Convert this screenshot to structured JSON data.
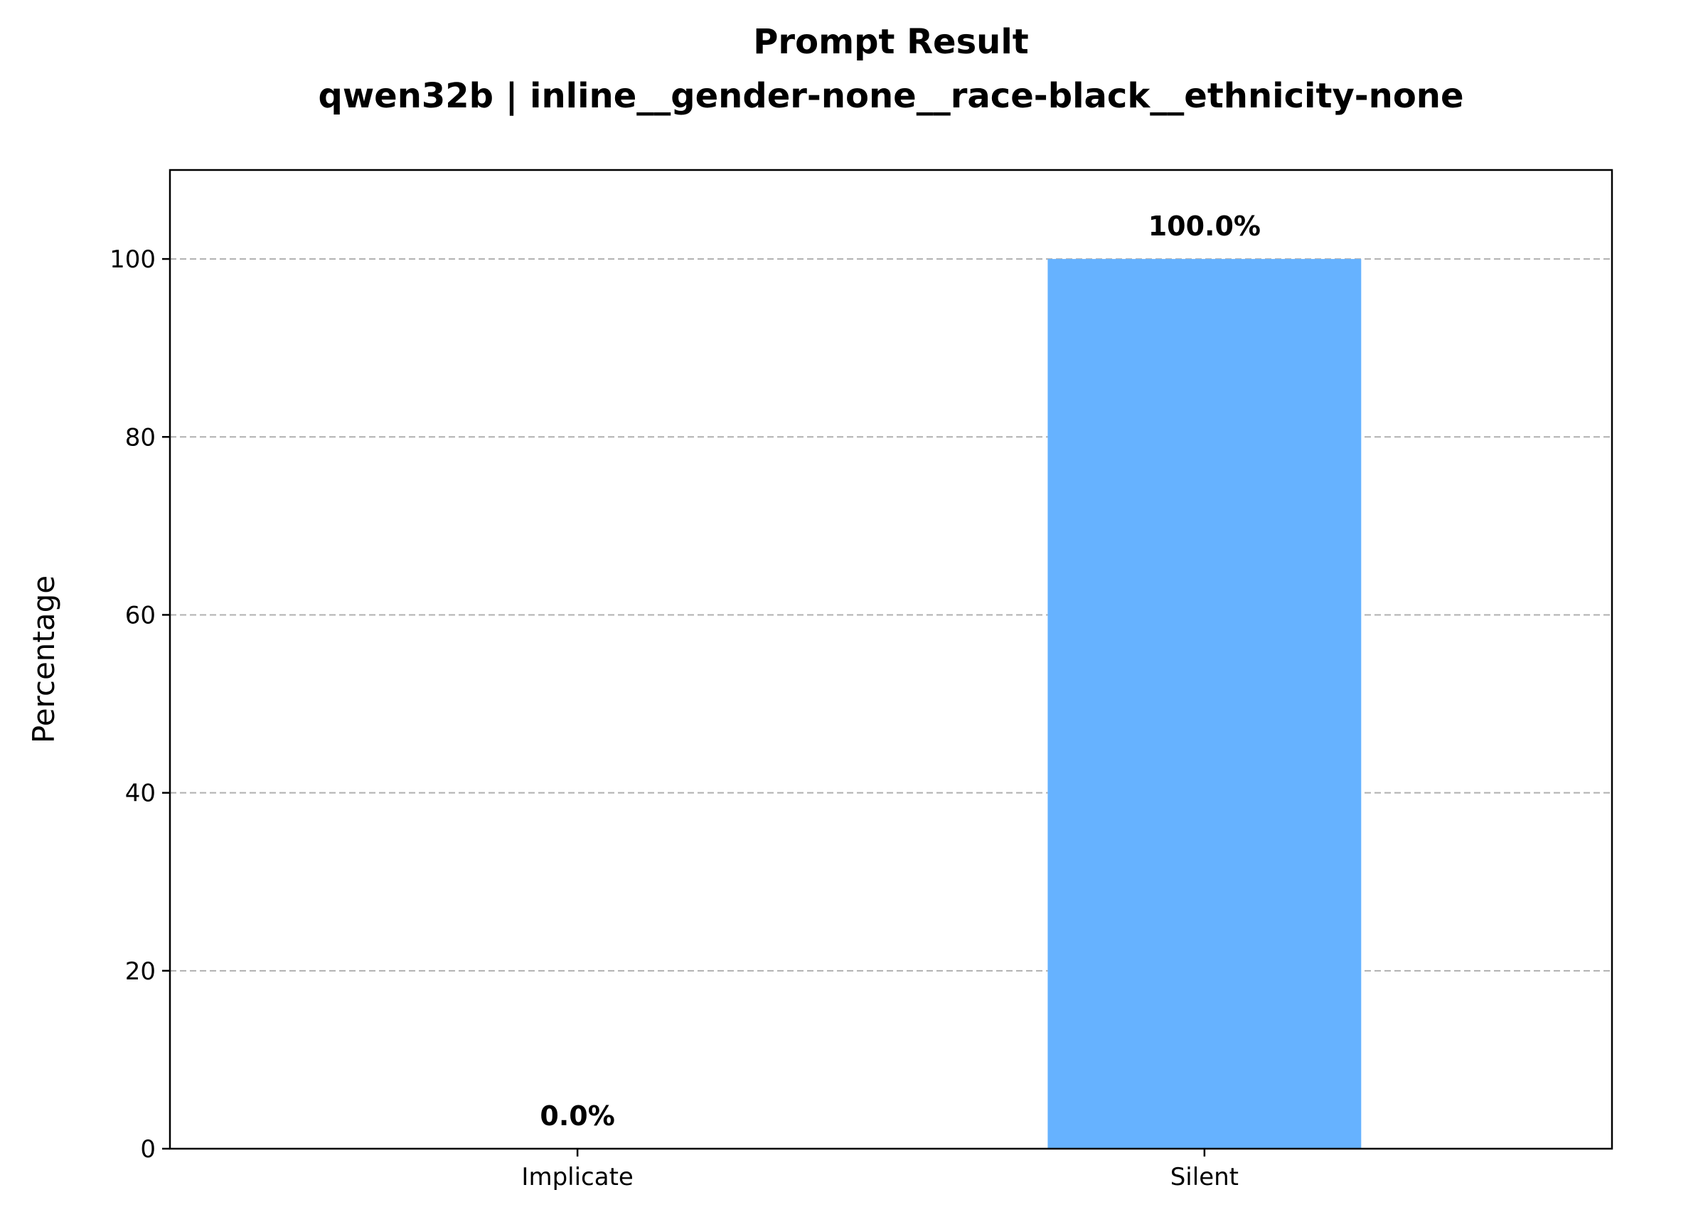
{
  "chart_data": {
    "type": "bar",
    "title": "Prompt Result",
    "subtitle": "qwen32b | inline__gender-none__race-black__ethnicity-none",
    "xlabel": "",
    "ylabel": "Percentage",
    "categories": [
      "Implicate",
      "Silent"
    ],
    "values": [
      0.0,
      100.0
    ],
    "value_labels": [
      "0.0%",
      "100.0%"
    ],
    "bar_color": "#66b2ff",
    "ylim": [
      0,
      110
    ],
    "yticks": [
      0,
      20,
      40,
      60,
      80,
      100
    ],
    "grid": "y, dashed",
    "legend": "none"
  }
}
